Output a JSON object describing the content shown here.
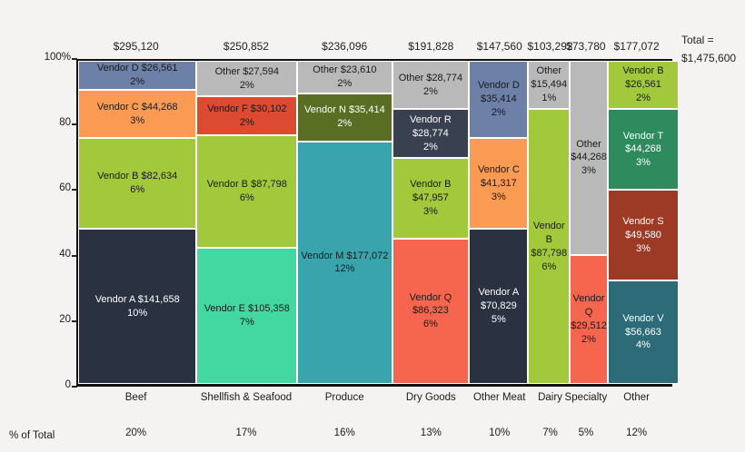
{
  "grand_total": {
    "line1": "Total =",
    "line2": "$1,475,600"
  },
  "footer": {
    "row_label": "% of Total"
  },
  "y_axis": {
    "ticks": [
      {
        "value": 0,
        "label": "0"
      },
      {
        "value": 20,
        "label": "20"
      },
      {
        "value": 40,
        "label": "40"
      },
      {
        "value": 60,
        "label": "60"
      },
      {
        "value": 80,
        "label": "80"
      },
      {
        "value": 100,
        "label": "100%"
      }
    ]
  },
  "chart_data": {
    "type": "marimekko",
    "title": "",
    "total": 1475600,
    "total_label": "$1,475,600",
    "legend_position": "none",
    "grid": false,
    "y_axis_range": [
      0,
      100
    ],
    "vendor_colors": {
      "Vendor A": "#2a3140",
      "Vendor B": "#a2c83b",
      "Vendor C": "#fb9b53",
      "Vendor D": "#6d80a8",
      "Vendor E": "#43d8a1",
      "Vendor F": "#dc4a32",
      "Vendor M": "#3aa4ad",
      "Vendor N": "#5a6e23",
      "Vendor Q": "#f6654e",
      "Vendor R": "#39404f",
      "Vendor S": "#9c3a26",
      "Vendor T": "#2e8b5e",
      "Vendor V": "#2d6b78",
      "Other": "#b9b9b9"
    },
    "vendor_text_colors": {
      "Vendor A": "#ffffff",
      "Vendor B": "#1a1a1a",
      "Vendor C": "#1a1a1a",
      "Vendor D": "#1a1a1a",
      "Vendor E": "#1a1a1a",
      "Vendor F": "#1a1a1a",
      "Vendor M": "#1a1a1a",
      "Vendor N": "#ffffff",
      "Vendor Q": "#1a1a1a",
      "Vendor R": "#ffffff",
      "Vendor S": "#ffffff",
      "Vendor T": "#ffffff",
      "Vendor V": "#ffffff",
      "Other": "#1a1a1a"
    },
    "columns": [
      {
        "category": "Beef",
        "total": 295120,
        "total_label": "$295,120",
        "share_pct": 20,
        "share_label": "20%",
        "segments": [
          {
            "vendor": "Vendor D",
            "amount": 26561,
            "amount_label": "$26,561",
            "pct_label": "2%"
          },
          {
            "vendor": "Vendor C",
            "amount": 44268,
            "amount_label": "$44,268",
            "pct_label": "3%"
          },
          {
            "vendor": "Vendor B",
            "amount": 82634,
            "amount_label": "$82,634",
            "pct_label": "6%"
          },
          {
            "vendor": "Vendor A",
            "amount": 141658,
            "amount_label": "$141,658",
            "pct_label": "10%"
          }
        ]
      },
      {
        "category": "Shellfish & Seafood",
        "total": 250852,
        "total_label": "$250,852",
        "share_pct": 17,
        "share_label": "17%",
        "segments": [
          {
            "vendor": "Other",
            "amount": 27594,
            "amount_label": "$27,594",
            "pct_label": "2%"
          },
          {
            "vendor": "Vendor F",
            "amount": 30102,
            "amount_label": "$30,102",
            "pct_label": "2%"
          },
          {
            "vendor": "Vendor B",
            "amount": 87798,
            "amount_label": "$87,798",
            "pct_label": "6%"
          },
          {
            "vendor": "Vendor E",
            "amount": 105358,
            "amount_label": "$105,358",
            "pct_label": "7%"
          }
        ]
      },
      {
        "category": "Produce",
        "total": 236096,
        "total_label": "$236,096",
        "share_pct": 16,
        "share_label": "16%",
        "segments": [
          {
            "vendor": "Other",
            "amount": 23610,
            "amount_label": "$23,610",
            "pct_label": "2%"
          },
          {
            "vendor": "Vendor N",
            "amount": 35414,
            "amount_label": "$35,414",
            "pct_label": "2%"
          },
          {
            "vendor": "Vendor M",
            "amount": 177072,
            "amount_label": "$177,072",
            "pct_label": "12%"
          }
        ]
      },
      {
        "category": "Dry Goods",
        "total": 191828,
        "total_label": "$191,828",
        "share_pct": 13,
        "share_label": "13%",
        "segments": [
          {
            "vendor": "Other",
            "amount": 28774,
            "amount_label": "$28,774",
            "pct_label": "2%"
          },
          {
            "vendor": "Vendor R",
            "amount": 28774,
            "amount_label": "$28,774",
            "pct_label": "2%"
          },
          {
            "vendor": "Vendor B",
            "amount": 47957,
            "amount_label": "$47,957",
            "pct_label": "3%"
          },
          {
            "vendor": "Vendor Q",
            "amount": 86323,
            "amount_label": "$86,323",
            "pct_label": "6%"
          }
        ]
      },
      {
        "category": "Other Meat",
        "total": 147560,
        "total_label": "$147,560",
        "share_pct": 10,
        "share_label": "10%",
        "segments": [
          {
            "vendor": "Vendor D",
            "amount": 35414,
            "amount_label": "$35,414",
            "pct_label": "2%"
          },
          {
            "vendor": "Vendor C",
            "amount": 41317,
            "amount_label": "$41,317",
            "pct_label": "3%"
          },
          {
            "vendor": "Vendor A",
            "amount": 70829,
            "amount_label": "$70,829",
            "pct_label": "5%"
          }
        ]
      },
      {
        "category": "Dairy",
        "total": 103292,
        "total_label": "$103,292",
        "share_pct": 7,
        "share_label": "7%",
        "segments": [
          {
            "vendor": "Other",
            "amount": 15494,
            "amount_label": "$15,494",
            "pct_label": "1%"
          },
          {
            "vendor": "Vendor B",
            "amount": 87798,
            "amount_label": "$87,798",
            "pct_label": "6%"
          }
        ]
      },
      {
        "category": "Specialty",
        "total": 73780,
        "total_label": "$73,780",
        "share_pct": 5,
        "share_label": "5%",
        "segments": [
          {
            "vendor": "Other",
            "amount": 44268,
            "amount_label": "$44,268",
            "pct_label": "3%"
          },
          {
            "vendor": "Vendor Q",
            "amount": 29512,
            "amount_label": "$29,512",
            "pct_label": "2%"
          }
        ]
      },
      {
        "category": "Other",
        "total": 177072,
        "total_label": "$177,072",
        "share_pct": 12,
        "share_label": "12%",
        "segments": [
          {
            "vendor": "Vendor B",
            "amount": 26561,
            "amount_label": "$26,561",
            "pct_label": "2%"
          },
          {
            "vendor": "Vendor T",
            "amount": 44268,
            "amount_label": "$44,268",
            "pct_label": "3%"
          },
          {
            "vendor": "Vendor S",
            "amount": 49580,
            "amount_label": "$49,580",
            "pct_label": "3%"
          },
          {
            "vendor": "Vendor V",
            "amount": 56663,
            "amount_label": "$56,663",
            "pct_label": "4%"
          }
        ]
      }
    ]
  }
}
